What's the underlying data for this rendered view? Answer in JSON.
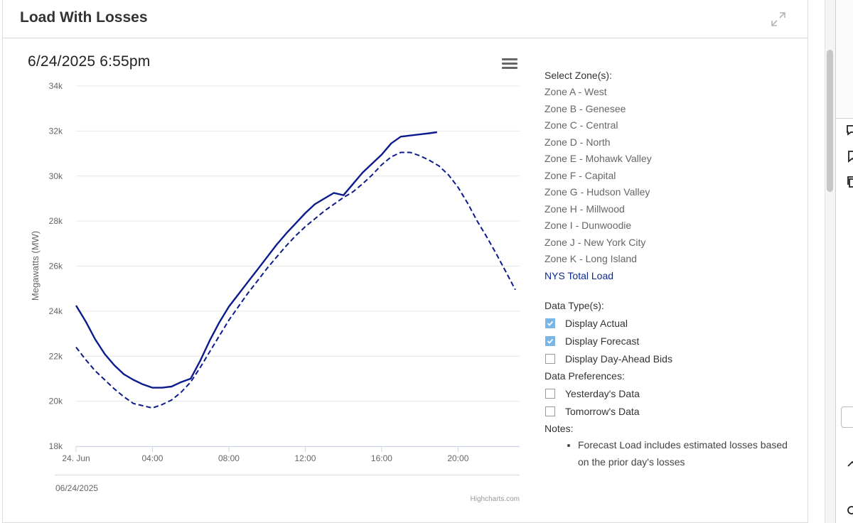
{
  "panel": {
    "title": "Load With Losses"
  },
  "chart_header": {
    "datetime": "6/24/2025 6:55pm"
  },
  "legend": {
    "select_zones_label": "Select Zone(s):",
    "zones": [
      {
        "label": "Zone A - West",
        "active": false
      },
      {
        "label": "Zone B - Genesee",
        "active": false
      },
      {
        "label": "Zone C - Central",
        "active": false
      },
      {
        "label": "Zone D - North",
        "active": false
      },
      {
        "label": "Zone E - Mohawk Valley",
        "active": false
      },
      {
        "label": "Zone F - Capital",
        "active": false
      },
      {
        "label": "Zone G - Hudson Valley",
        "active": false
      },
      {
        "label": "Zone H - Millwood",
        "active": false
      },
      {
        "label": "Zone I - Dunwoodie",
        "active": false
      },
      {
        "label": "Zone J - New York City",
        "active": false
      },
      {
        "label": "Zone K - Long Island",
        "active": false
      },
      {
        "label": "NYS Total Load",
        "active": true
      }
    ],
    "data_types_label": "Data Type(s):",
    "data_types": [
      {
        "label": "Display Actual",
        "checked": true
      },
      {
        "label": "Display Forecast",
        "checked": true
      },
      {
        "label": "Display Day-Ahead Bids",
        "checked": false
      }
    ],
    "preferences_label": "Data Preferences:",
    "preferences": [
      {
        "label": "Yesterday's Data",
        "checked": false
      },
      {
        "label": "Tomorrow's Data",
        "checked": false
      }
    ],
    "notes_label": "Notes:",
    "notes": [
      "Forecast Load includes estimated losses based on the prior day's losses"
    ]
  },
  "colors": {
    "series": "#0b1a8c",
    "checkbox_checked": "#7ab7e6",
    "grid": "#e6e6e6"
  },
  "icons": {
    "expand": "expand-icon",
    "menu": "hamburger-menu-icon",
    "check": "check-icon"
  },
  "chart_data": {
    "type": "line",
    "ylabel": "Megawatts (MW)",
    "ylim": [
      18000,
      34000
    ],
    "yticks": [
      18000,
      20000,
      22000,
      24000,
      26000,
      28000,
      30000,
      32000,
      34000
    ],
    "ytick_labels": [
      "18k",
      "20k",
      "22k",
      "24k",
      "26k",
      "28k",
      "30k",
      "32k",
      "34k"
    ],
    "xlim": [
      0,
      23
    ],
    "xticks": [
      0,
      4,
      8,
      12,
      16,
      20
    ],
    "xtick_labels": [
      "24. Jun",
      "04:00",
      "08:00",
      "12:00",
      "16:00",
      "20:00"
    ],
    "navigator_label": "06/24/2025",
    "credit": "Highcharts.com",
    "grid": true,
    "legend": "none",
    "series": [
      {
        "style": "solid",
        "x": [
          0,
          0.25,
          0.5,
          0.75,
          1,
          1.5,
          2,
          2.5,
          3,
          3.5,
          4,
          4.5,
          5,
          5.5,
          6,
          6.5,
          7,
          7.5,
          8,
          8.5,
          9,
          9.5,
          10,
          10.5,
          11,
          11.5,
          12,
          12.5,
          13,
          13.5,
          14,
          14.5,
          15,
          15.5,
          16,
          16.5,
          17,
          17.5,
          18,
          18.5,
          18.9
        ],
        "y": [
          24250,
          23900,
          23550,
          23150,
          22750,
          22100,
          21600,
          21200,
          20950,
          20750,
          20600,
          20600,
          20650,
          20850,
          21000,
          21800,
          22700,
          23500,
          24200,
          24750,
          25300,
          25850,
          26400,
          26950,
          27450,
          27900,
          28350,
          28750,
          29000,
          29250,
          29150,
          29650,
          30150,
          30550,
          30950,
          31450,
          31750,
          31800,
          31850,
          31900,
          31950
        ]
      },
      {
        "style": "dashed",
        "x": [
          0,
          0.5,
          1,
          1.5,
          2,
          2.5,
          3,
          3.5,
          4,
          4.5,
          5,
          5.5,
          6,
          6.5,
          7,
          7.5,
          8,
          8.5,
          9,
          9.5,
          10,
          10.5,
          11,
          11.5,
          12,
          12.5,
          13,
          13.5,
          14,
          14.5,
          15,
          15.5,
          16,
          16.5,
          17,
          17.5,
          18,
          18.5,
          19,
          19.5,
          20,
          20.5,
          21,
          21.5,
          22,
          22.5,
          23
        ],
        "y": [
          22400,
          21850,
          21350,
          20950,
          20550,
          20200,
          19900,
          19800,
          19700,
          19850,
          20050,
          20400,
          20850,
          21500,
          22200,
          22900,
          23600,
          24200,
          24800,
          25350,
          25900,
          26400,
          26900,
          27350,
          27750,
          28100,
          28450,
          28750,
          29050,
          29300,
          29650,
          30050,
          30500,
          30850,
          31050,
          31050,
          30900,
          30700,
          30450,
          30050,
          29500,
          28800,
          28000,
          27300,
          26550,
          25750,
          24950
        ]
      }
    ]
  }
}
